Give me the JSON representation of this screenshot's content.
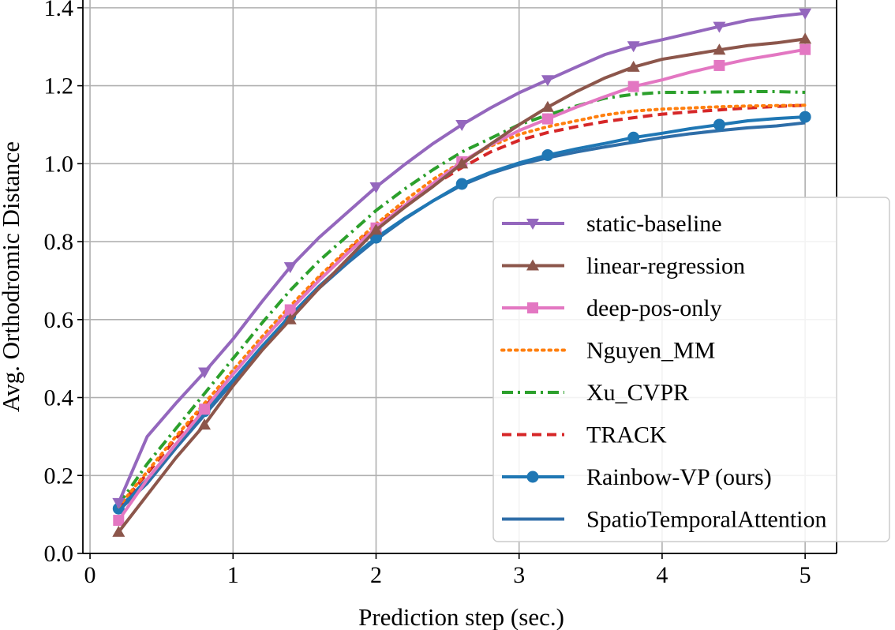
{
  "chart_data": {
    "type": "line",
    "xlabel": "Prediction step (sec.)",
    "ylabel": "Avg. Orthodromic Distance",
    "xlim": [
      -0.05,
      5.22
    ],
    "ylim": [
      0.0,
      1.42
    ],
    "xticks": [
      0,
      1,
      2,
      3,
      4,
      5
    ],
    "xtick_labels": [
      "0",
      "1",
      "2",
      "3",
      "4",
      "5"
    ],
    "yticks": [
      0.0,
      0.2,
      0.4,
      0.6,
      0.8,
      1.0,
      1.2,
      1.4
    ],
    "ytick_labels": [
      "0.0",
      "0.2",
      "0.4",
      "0.6",
      "0.8",
      "1.0",
      "1.2",
      "1.4"
    ],
    "grid": true,
    "legend_position": "lower-right",
    "series": [
      {
        "name": "static-baseline",
        "color": "#9467bd",
        "dash": "solid",
        "marker": "triangle-down",
        "x": [
          0.2,
          0.4,
          0.6,
          0.8,
          1.0,
          1.2,
          1.4,
          1.6,
          1.8,
          2.0,
          2.2,
          2.4,
          2.6,
          2.8,
          3.0,
          3.2,
          3.4,
          3.6,
          3.8,
          4.0,
          4.2,
          4.4,
          4.6,
          4.8,
          5.0
        ],
        "values": [
          0.13,
          0.3,
          0.385,
          0.465,
          0.55,
          0.645,
          0.735,
          0.81,
          0.875,
          0.94,
          0.998,
          1.052,
          1.1,
          1.143,
          1.182,
          1.215,
          1.248,
          1.28,
          1.302,
          1.318,
          1.335,
          1.352,
          1.368,
          1.378,
          1.386
        ],
        "marker_x": [
          0.2,
          0.8,
          1.4,
          2.0,
          2.6,
          3.2,
          3.8,
          4.4,
          5.0
        ]
      },
      {
        "name": "linear-regression",
        "color": "#8c564b",
        "dash": "solid",
        "marker": "triangle-up",
        "x": [
          0.2,
          0.4,
          0.6,
          0.8,
          1.0,
          1.2,
          1.4,
          1.6,
          1.8,
          2.0,
          2.2,
          2.4,
          2.6,
          2.8,
          3.0,
          3.2,
          3.4,
          3.6,
          3.8,
          4.0,
          4.2,
          4.4,
          4.6,
          4.8,
          5.0
        ],
        "values": [
          0.055,
          0.15,
          0.245,
          0.33,
          0.43,
          0.52,
          0.6,
          0.68,
          0.755,
          0.83,
          0.888,
          0.942,
          1.0,
          1.05,
          1.1,
          1.145,
          1.185,
          1.22,
          1.248,
          1.268,
          1.28,
          1.292,
          1.303,
          1.31,
          1.32
        ],
        "marker_x": [
          0.2,
          0.8,
          1.4,
          2.0,
          2.6,
          3.2,
          3.8,
          4.4,
          5.0
        ]
      },
      {
        "name": "deep-pos-only",
        "color": "#e377c2",
        "dash": "solid",
        "marker": "square",
        "x": [
          0.2,
          0.4,
          0.6,
          0.8,
          1.0,
          1.2,
          1.4,
          1.6,
          1.8,
          2.0,
          2.2,
          2.4,
          2.6,
          2.8,
          3.0,
          3.2,
          3.4,
          3.6,
          3.8,
          4.0,
          4.2,
          4.4,
          4.6,
          4.8,
          5.0
        ],
        "values": [
          0.085,
          0.19,
          0.28,
          0.37,
          0.46,
          0.545,
          0.625,
          0.7,
          0.77,
          0.835,
          0.893,
          0.95,
          1.005,
          1.048,
          1.085,
          1.115,
          1.145,
          1.172,
          1.198,
          1.215,
          1.235,
          1.252,
          1.268,
          1.28,
          1.293
        ],
        "marker_x": [
          0.2,
          0.8,
          1.4,
          2.0,
          2.6,
          3.2,
          3.8,
          4.4,
          5.0
        ]
      },
      {
        "name": "Nguyen_MM",
        "color": "#ff7f0e",
        "dash": "dotted",
        "marker": "none",
        "x": [
          0.2,
          0.4,
          0.6,
          0.8,
          1.0,
          1.2,
          1.4,
          1.6,
          1.8,
          2.0,
          2.2,
          2.4,
          2.6,
          2.8,
          3.0,
          3.2,
          3.4,
          3.6,
          3.8,
          4.0,
          4.2,
          4.4,
          4.6,
          4.8,
          5.0
        ],
        "values": [
          0.12,
          0.21,
          0.3,
          0.385,
          0.47,
          0.555,
          0.635,
          0.71,
          0.78,
          0.845,
          0.905,
          0.96,
          1.005,
          1.045,
          1.075,
          1.095,
          1.11,
          1.125,
          1.135,
          1.14,
          1.143,
          1.146,
          1.148,
          1.149,
          1.15
        ]
      },
      {
        "name": "Xu_CVPR",
        "color": "#2ca02c",
        "dash": "dashdot",
        "marker": "none",
        "x": [
          0.2,
          0.4,
          0.6,
          0.8,
          1.0,
          1.2,
          1.4,
          1.6,
          1.8,
          2.0,
          2.2,
          2.4,
          2.6,
          2.8,
          3.0,
          3.2,
          3.4,
          3.6,
          3.8,
          4.0,
          4.2,
          4.4,
          4.6,
          4.8,
          5.0
        ],
        "values": [
          0.125,
          0.23,
          0.32,
          0.41,
          0.5,
          0.59,
          0.675,
          0.75,
          0.815,
          0.88,
          0.935,
          0.985,
          1.03,
          1.065,
          1.1,
          1.125,
          1.148,
          1.168,
          1.178,
          1.183,
          1.183,
          1.184,
          1.185,
          1.185,
          1.183
        ]
      },
      {
        "name": "TRACK",
        "color": "#d62728",
        "dash": "dashed",
        "marker": "none",
        "x": [
          0.2,
          0.4,
          0.6,
          0.8,
          1.0,
          1.2,
          1.4,
          1.6,
          1.8,
          2.0,
          2.2,
          2.4,
          2.6,
          2.8,
          3.0,
          3.2,
          3.4,
          3.6,
          3.8,
          4.0,
          4.2,
          4.4,
          4.6,
          4.8,
          5.0
        ],
        "values": [
          0.12,
          0.205,
          0.295,
          0.375,
          0.46,
          0.545,
          0.625,
          0.705,
          0.775,
          0.84,
          0.895,
          0.945,
          0.99,
          1.03,
          1.06,
          1.08,
          1.095,
          1.108,
          1.118,
          1.127,
          1.133,
          1.138,
          1.143,
          1.147,
          1.15
        ]
      },
      {
        "name": "Rainbow-VP (ours)",
        "color": "#1f77b4",
        "dash": "solid",
        "marker": "circle",
        "x": [
          0.2,
          0.4,
          0.6,
          0.8,
          1.0,
          1.2,
          1.4,
          1.6,
          1.8,
          2.0,
          2.2,
          2.4,
          2.6,
          2.8,
          3.0,
          3.2,
          3.4,
          3.6,
          3.8,
          4.0,
          4.2,
          4.4,
          4.6,
          4.8,
          5.0
        ],
        "values": [
          0.115,
          0.19,
          0.28,
          0.365,
          0.445,
          0.53,
          0.61,
          0.685,
          0.75,
          0.81,
          0.86,
          0.905,
          0.948,
          0.978,
          1.002,
          1.022,
          1.038,
          1.052,
          1.067,
          1.078,
          1.09,
          1.1,
          1.11,
          1.116,
          1.12
        ],
        "marker_x": [
          0.2,
          0.8,
          1.4,
          2.0,
          2.6,
          3.2,
          3.8,
          4.4,
          5.0
        ]
      },
      {
        "name": "SpatioTemporalAttention",
        "color": "#2f6ea8",
        "dash": "solid",
        "marker": "none",
        "x": [
          0.2,
          0.4,
          0.6,
          0.8,
          1.0,
          1.2,
          1.4,
          1.6,
          1.8,
          2.0,
          2.2,
          2.4,
          2.6,
          2.8,
          3.0,
          3.2,
          3.4,
          3.6,
          3.8,
          4.0,
          4.2,
          4.4,
          4.6,
          4.8,
          5.0
        ],
        "values": [
          0.11,
          0.18,
          0.27,
          0.355,
          0.44,
          0.525,
          0.605,
          0.68,
          0.745,
          0.805,
          0.858,
          0.905,
          0.945,
          0.975,
          0.998,
          1.015,
          1.03,
          1.043,
          1.055,
          1.067,
          1.077,
          1.085,
          1.092,
          1.097,
          1.105
        ]
      }
    ]
  }
}
